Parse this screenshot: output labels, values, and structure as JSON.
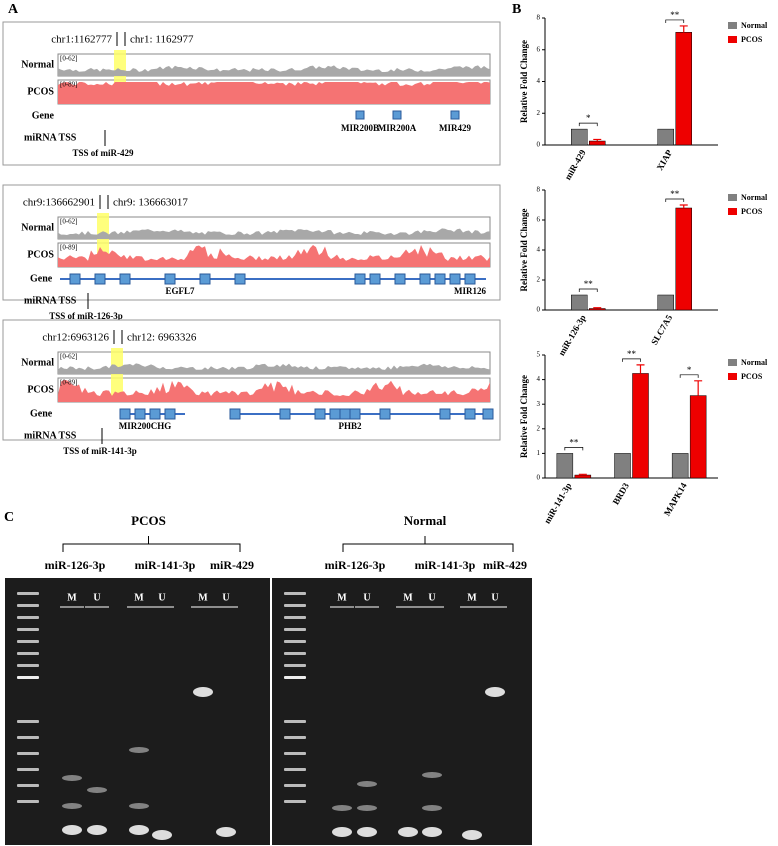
{
  "panels": {
    "a": "A",
    "b": "B",
    "c": "C"
  },
  "tracks": [
    {
      "left_coord": "chr1:1162777",
      "right_coord": "chr1: 1162977",
      "normal": "Normal",
      "pcos": "PCOS",
      "normal_scale": "[0-62]",
      "pcos_scale": "[0-89]",
      "gene": "Gene",
      "tss": "miRNA TSS",
      "tss_label": "TSS of miR-429",
      "genes": [
        "MIR200B",
        "MIR200A",
        "MIR429"
      ]
    },
    {
      "left_coord": "chr9:136662901",
      "right_coord": "chr9: 136663017",
      "normal": "Normal",
      "pcos": "PCOS",
      "normal_scale": "[0-62]",
      "pcos_scale": "[0-89]",
      "gene": "Gene",
      "tss": "miRNA TSS",
      "tss_label": "TSS of miR-126-3p",
      "genes": [
        "EGFL7",
        "MIR126"
      ]
    },
    {
      "left_coord": "chr12:6963126",
      "right_coord": "chr12: 6963326",
      "normal": "Normal",
      "pcos": "PCOS",
      "normal_scale": "[0-62]",
      "pcos_scale": "[0-89]",
      "gene": "Gene",
      "tss": "miRNA TSS",
      "tss_label": "TSS of miR-141-3p",
      "genes": [
        "MIR200CHG",
        "PHB2"
      ]
    }
  ],
  "chart_data": [
    {
      "type": "bar",
      "y_label": "Relative Fold Change",
      "categories": [
        "miR-429",
        "XIAP"
      ],
      "series": [
        {
          "name": "Normal",
          "color": "#808080",
          "values": [
            1,
            1
          ]
        },
        {
          "name": "PCOS",
          "color": "#ee0000",
          "values": [
            0.25,
            7.1
          ],
          "errors": [
            0.1,
            0.4
          ]
        }
      ],
      "significance": [
        "*",
        "**"
      ],
      "ylim": [
        0,
        8
      ],
      "yticks": [
        0,
        2,
        4,
        6,
        8
      ],
      "legend": "right"
    },
    {
      "type": "bar",
      "y_label": "Relative Fold Change",
      "categories": [
        "miR-126-3p",
        "SLC7A5"
      ],
      "series": [
        {
          "name": "Normal",
          "color": "#808080",
          "values": [
            1,
            1
          ]
        },
        {
          "name": "PCOS",
          "color": "#ee0000",
          "values": [
            0.1,
            6.8
          ],
          "errors": [
            0.05,
            0.2
          ]
        }
      ],
      "significance": [
        "**",
        "**"
      ],
      "ylim": [
        0,
        8
      ],
      "yticks": [
        0,
        2,
        4,
        6,
        8
      ],
      "legend": "right"
    },
    {
      "type": "bar",
      "y_label": "Relative Fold Change",
      "categories": [
        "miR-141-3p",
        "BRD3",
        "MAPK14"
      ],
      "series": [
        {
          "name": "Normal",
          "color": "#808080",
          "values": [
            1,
            1,
            1
          ]
        },
        {
          "name": "PCOS",
          "color": "#ee0000",
          "values": [
            0.12,
            4.25,
            3.35
          ],
          "errors": [
            0.03,
            0.35,
            0.6
          ]
        }
      ],
      "significance": [
        "**",
        "**",
        "*"
      ],
      "ylim": [
        0,
        5
      ],
      "yticks": [
        0,
        1,
        2,
        3,
        4,
        5
      ],
      "legend": "right"
    }
  ],
  "gels": [
    {
      "group": "PCOS",
      "lanes": [
        "miR-126-3p",
        "miR-141-3p",
        "miR-429"
      ],
      "marks": [
        "M",
        "U",
        "M",
        "U",
        "M",
        "U"
      ]
    },
    {
      "group": "Normal",
      "lanes": [
        "miR-126-3p",
        "miR-141-3p",
        "miR-429"
      ],
      "marks": [
        "M",
        "U",
        "M",
        "U",
        "M",
        "U"
      ]
    }
  ]
}
